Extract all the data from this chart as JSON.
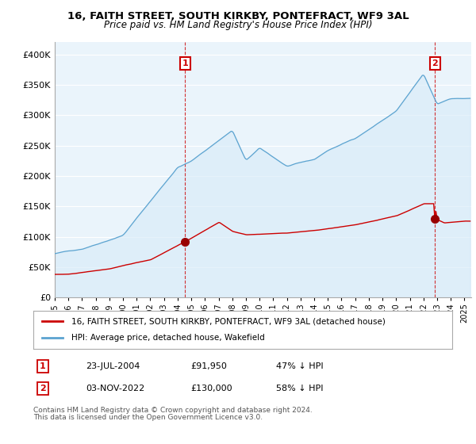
{
  "title": "16, FAITH STREET, SOUTH KIRKBY, PONTEFRACT, WF9 3AL",
  "subtitle": "Price paid vs. HM Land Registry's House Price Index (HPI)",
  "xlim_start": 1995.0,
  "xlim_end": 2025.5,
  "ylim": [
    0,
    420000
  ],
  "yticks": [
    0,
    50000,
    100000,
    150000,
    200000,
    250000,
    300000,
    350000,
    400000
  ],
  "sale1_x": 2004.55,
  "sale1_y": 91950,
  "sale1_label": "1",
  "sale1_date": "23-JUL-2004",
  "sale1_price": "£91,950",
  "sale1_hpi": "47% ↓ HPI",
  "sale2_x": 2022.84,
  "sale2_y": 130000,
  "sale2_label": "2",
  "sale2_date": "03-NOV-2022",
  "sale2_price": "£130,000",
  "sale2_hpi": "58% ↓ HPI",
  "hpi_line_color": "#5ba3d0",
  "hpi_fill_color": "#d6eaf8",
  "price_line_color": "#cc0000",
  "legend_label1": "16, FAITH STREET, SOUTH KIRKBY, PONTEFRACT, WF9 3AL (detached house)",
  "legend_label2": "HPI: Average price, detached house, Wakefield",
  "footnote1": "Contains HM Land Registry data © Crown copyright and database right 2024.",
  "footnote2": "This data is licensed under the Open Government Licence v3.0.",
  "background_color": "#ffffff",
  "plot_bg_color": "#eaf4fb",
  "grid_color": "#ffffff"
}
